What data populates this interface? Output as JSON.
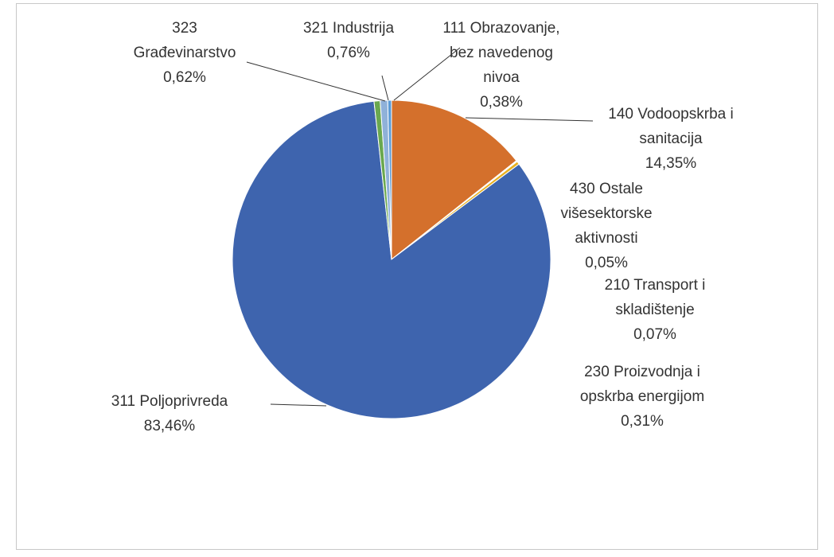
{
  "chart_data": {
    "type": "pie",
    "categories": [
      "140 Vodoopskrba i sanitacija",
      "430 Ostale višesektorske aktivnosti",
      "210 Transport i skladištenje",
      "230 Proizvodnja i opskrba energijom",
      "311 Poljoprivreda",
      "323 Građevinarstvo",
      "321 Industrija",
      "111 Obrazovanje, bez navedenog nivoa"
    ],
    "values": [
      14.35,
      0.05,
      0.07,
      0.31,
      83.46,
      0.62,
      0.76,
      0.38
    ],
    "value_labels": [
      "14,35%",
      "0,05%",
      "0,07%",
      "0,31%",
      "83,46%",
      "0,62%",
      "0,76%",
      "0,38%"
    ],
    "colors": [
      "#d4702c",
      "#a5a5a5",
      "#264478",
      "#e8b020",
      "#3e64ae",
      "#6aa84f",
      "#8fb1d9",
      "#5b9bd5"
    ]
  }
}
